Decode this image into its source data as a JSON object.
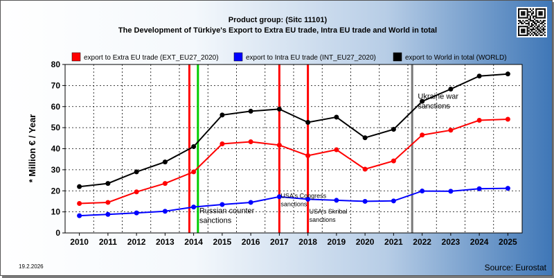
{
  "chart_data": {
    "type": "line",
    "title_line1": "Product group:  (Sitc 11101)",
    "title_line2": "The Development of Türkiye's Export to Extra EU trade, Intra EU trade and World in total",
    "ylabel": "* Million € / Year",
    "xlabel": "",
    "ylim": [
      0,
      80
    ],
    "yticks": [
      "0",
      "10",
      "20",
      "30",
      "40",
      "50",
      "60",
      "70",
      "80"
    ],
    "x": [
      "2010",
      "2011",
      "2012",
      "2013",
      "2014",
      "2015",
      "2016",
      "2017",
      "2018",
      "2019",
      "2020",
      "2021",
      "2022",
      "2023",
      "2024",
      "2025"
    ],
    "grid": true,
    "legend_position": "top",
    "series": [
      {
        "name": "export to Extra EU trade (EXT_EU27_2020)",
        "color": "#ff0000",
        "values": [
          14,
          14.5,
          19.5,
          23.5,
          29,
          42.3,
          43.3,
          41.7,
          36.7,
          39.5,
          30.3,
          34.2,
          46.5,
          48.8,
          53.5,
          54
        ]
      },
      {
        "name": "export to Intra EU trade (INT_EU27_2020)",
        "color": "#0000ff",
        "values": [
          8.2,
          8.8,
          9.5,
          10.3,
          12.3,
          13.5,
          14.5,
          17.2,
          16,
          15.5,
          15,
          15.2,
          19.9,
          19.8,
          21,
          21.2
        ]
      },
      {
        "name": "export to World in total (WORLD)",
        "color": "#000000",
        "values": [
          22,
          23.5,
          29,
          33.7,
          41,
          56,
          57.8,
          58.8,
          52.5,
          55,
          45.2,
          49.2,
          62.5,
          68.3,
          74.5,
          75.5
        ]
      }
    ],
    "markers": [
      {
        "x_index": 3.85,
        "color": "#ff0000"
      },
      {
        "x_index": 4.15,
        "color": "#00cc00"
      },
      {
        "x_index": 7.0,
        "color": "#ff0000"
      },
      {
        "x_index": 8.0,
        "color": "#ff0000"
      },
      {
        "x_index": 11.65,
        "color": "#777777"
      }
    ],
    "annotations": [
      {
        "lines": [
          "Russian counter",
          "sanctions"
        ],
        "x_index": 4.15,
        "y": 9.4,
        "size": "normal"
      },
      {
        "lines": [
          "USA's Congress",
          "sanctions"
        ],
        "x_index": 7.0,
        "y": 16.7,
        "size": "small"
      },
      {
        "lines": [
          "USA's Skribal",
          "sanctions"
        ],
        "x_index": 8.0,
        "y": 9.3,
        "size": "small"
      },
      {
        "lines": [
          "Ukraine war",
          "sanctions"
        ],
        "x_index": 11.8,
        "y": 63.7,
        "size": "normal"
      }
    ],
    "date_stamp": "19.2.2026",
    "source": "Source: Eurostat"
  }
}
